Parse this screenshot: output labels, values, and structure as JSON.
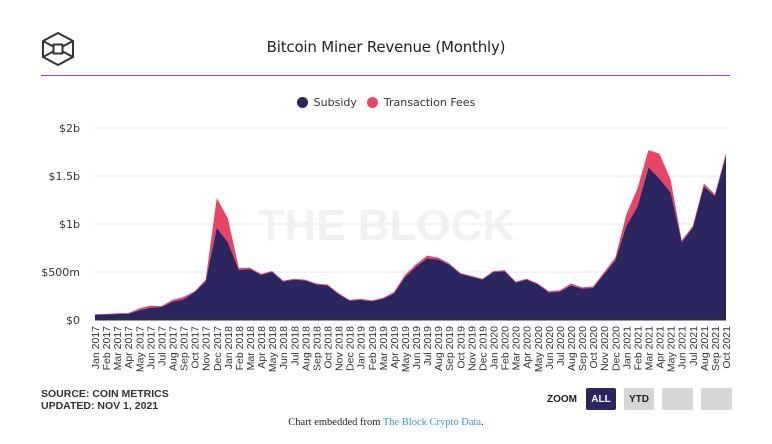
{
  "header": {
    "logo_icon": "the-block-cube-logo-icon",
    "title": "Bitcoin Miner Revenue (Monthly)"
  },
  "colors": {
    "subsidy": "#2b2560",
    "fees": "#e94366",
    "divider": "#9b3fd6",
    "zoom_active": "#2b2560",
    "zoom_inactive": "#d6d6d6",
    "link": "#2b9fd1",
    "watermark": "#f1f1f1"
  },
  "watermark": "THE BLOCK",
  "chart_data": {
    "type": "area",
    "stacked": true,
    "title": "Bitcoin Miner Revenue (Monthly)",
    "xlabel": "",
    "ylabel": "",
    "unit": "USD millions",
    "ylim": [
      0,
      2000
    ],
    "yticks": [
      0,
      500,
      1000,
      1500,
      2000
    ],
    "ytick_labels": [
      "$0",
      "$500m",
      "$1b",
      "$1.5b",
      "$2b"
    ],
    "grid": true,
    "legend_position": "top-center",
    "categories": [
      "Jan 2017",
      "Feb 2017",
      "Mar 2017",
      "Apr 2017",
      "May 2017",
      "Jun 2017",
      "Jul 2017",
      "Aug 2017",
      "Sep 2017",
      "Oct 2017",
      "Nov 2017",
      "Dec 2017",
      "Jan 2018",
      "Feb 2018",
      "Mar 2018",
      "Apr 2018",
      "May 2018",
      "Jun 2018",
      "Jul 2018",
      "Aug 2018",
      "Sep 2018",
      "Oct 2018",
      "Nov 2018",
      "Dec 2018",
      "Jan 2019",
      "Feb 2019",
      "Mar 2019",
      "Apr 2019",
      "May 2019",
      "Jun 2019",
      "Jul 2019",
      "Aug 2019",
      "Sep 2019",
      "Oct 2019",
      "Nov 2019",
      "Dec 2019",
      "Jan 2020",
      "Feb 2020",
      "Mar 2020",
      "Apr 2020",
      "May 2020",
      "Jun 2020",
      "Jul 2020",
      "Aug 2020",
      "Sep 2020",
      "Oct 2020",
      "Nov 2020",
      "Dec 2020",
      "Jan 2021",
      "Feb 2021",
      "Mar 2021",
      "Apr 2021",
      "May 2021",
      "Jun 2021",
      "Jul 2021",
      "Aug 2021",
      "Sep 2021",
      "Oct 2021"
    ],
    "series": [
      {
        "name": "Subsidy",
        "color": "#2b2560",
        "values": [
          55,
          57,
          63,
          64,
          100,
          128,
          135,
          190,
          215,
          290,
          400,
          960,
          810,
          520,
          530,
          470,
          500,
          400,
          420,
          410,
          370,
          360,
          270,
          200,
          210,
          195,
          220,
          275,
          445,
          555,
          640,
          630,
          575,
          480,
          450,
          420,
          500,
          505,
          390,
          420,
          370,
          285,
          295,
          360,
          325,
          335,
          480,
          620,
          980,
          1180,
          1590,
          1470,
          1330,
          810,
          960,
          1390,
          1290,
          1710
        ]
      },
      {
        "name": "Transaction Fees",
        "color": "#e94366",
        "values": [
          5,
          5,
          7,
          8,
          20,
          22,
          10,
          20,
          25,
          10,
          20,
          310,
          250,
          20,
          15,
          10,
          10,
          10,
          10,
          10,
          10,
          10,
          10,
          10,
          10,
          10,
          10,
          15,
          25,
          25,
          30,
          20,
          15,
          10,
          10,
          10,
          10,
          15,
          10,
          10,
          10,
          15,
          15,
          20,
          15,
          15,
          20,
          30,
          120,
          190,
          180,
          260,
          130,
          20,
          20,
          30,
          20,
          30
        ]
      }
    ]
  },
  "footer": {
    "source": "SOURCE: COIN METRICS",
    "updated": "UPDATED: NOV 1, 2021",
    "zoom_label": "ZOOM",
    "zoom_buttons": [
      "ALL",
      "YTD",
      "",
      ""
    ],
    "zoom_active": "ALL",
    "embed_prefix": "Chart embedded from ",
    "embed_link": "The Block Crypto Data",
    "embed_suffix": "."
  }
}
